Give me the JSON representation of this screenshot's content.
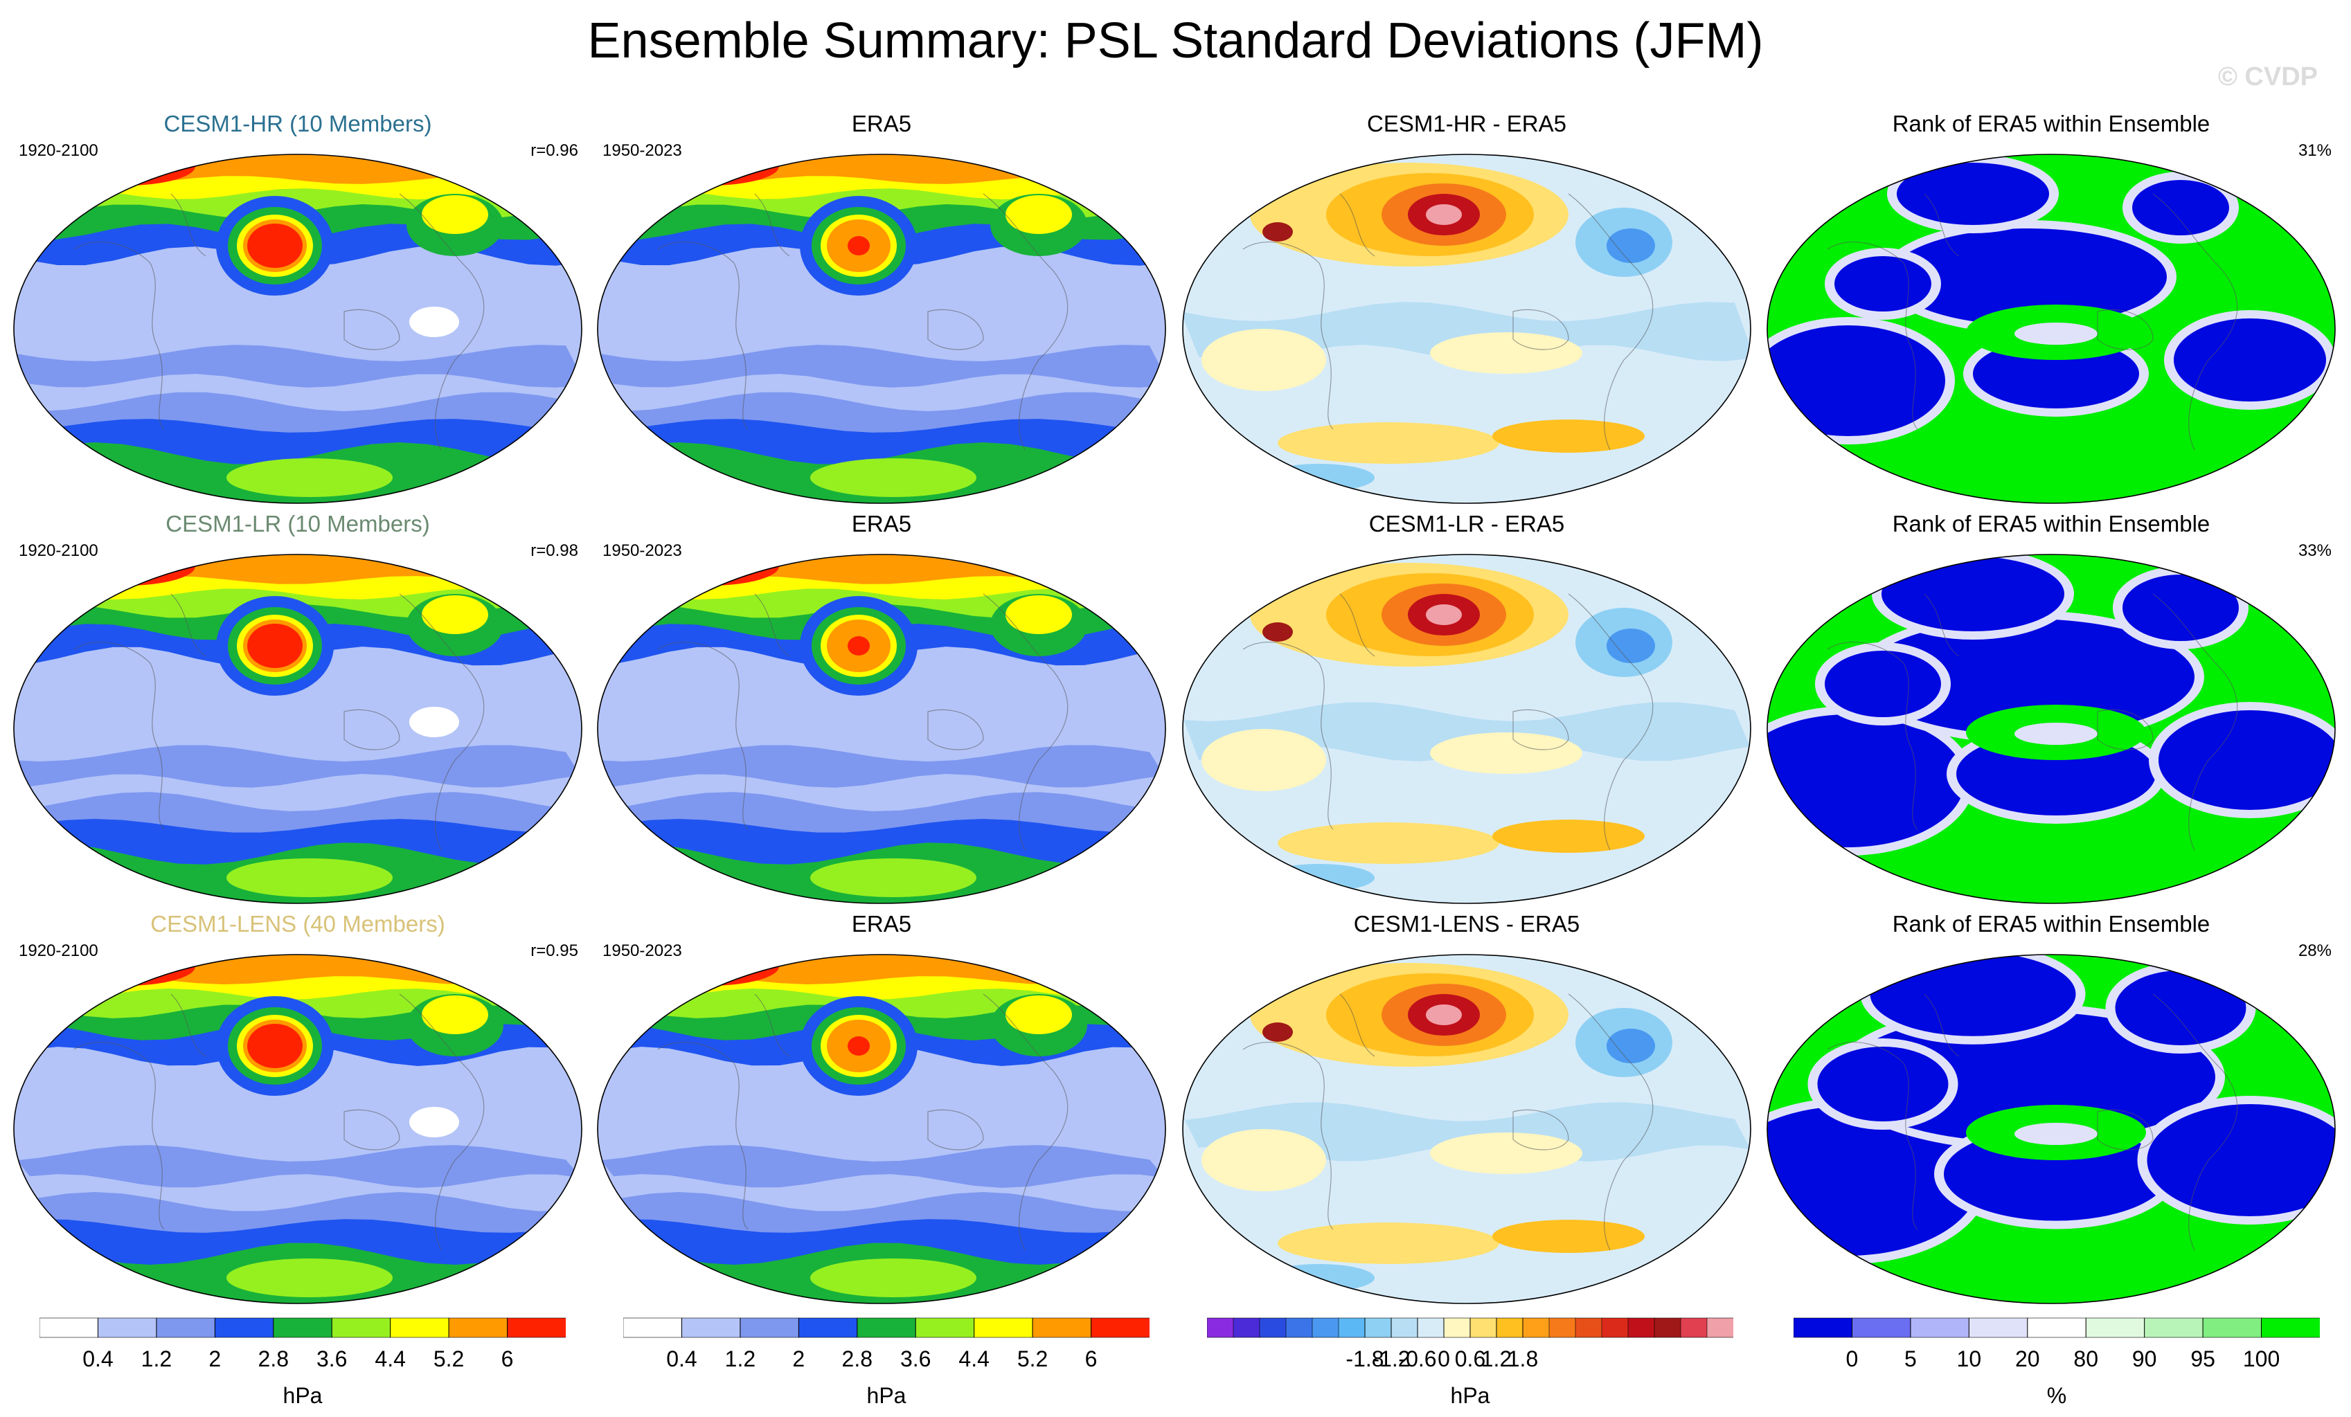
{
  "title": "Ensemble Summary: PSL Standard Deviations (JFM)",
  "copyright": "© CVDP",
  "rows": [
    {
      "model": {
        "title": "CESM1-HR (10 Members)",
        "title_color": "#2a7090",
        "years": "1920-2100",
        "r": "r=0.96"
      },
      "obs": {
        "title": "ERA5",
        "years": "1950-2023"
      },
      "diff": {
        "title": "CESM1-HR - ERA5"
      },
      "rank": {
        "title": "Rank of ERA5 within Ensemble",
        "percent": "31%"
      }
    },
    {
      "model": {
        "title": "CESM1-LR (10 Members)",
        "title_color": "#6a8a70",
        "years": "1920-2100",
        "r": "r=0.98"
      },
      "obs": {
        "title": "ERA5",
        "years": "1950-2023"
      },
      "diff": {
        "title": "CESM1-LR - ERA5"
      },
      "rank": {
        "title": "Rank of ERA5 within Ensemble",
        "percent": "33%"
      }
    },
    {
      "model": {
        "title": "CESM1-LENS (40 Members)",
        "title_color": "#d8c278",
        "years": "1920-2100",
        "r": "r=0.95"
      },
      "obs": {
        "title": "ERA5",
        "years": "1950-2023"
      },
      "diff": {
        "title": "CESM1-LENS - ERA5"
      },
      "rank": {
        "title": "Rank of ERA5 within Ensemble",
        "percent": "28%"
      }
    }
  ],
  "chart_data": {
    "type": "heatmap",
    "projection": "Robinson global maps, 3 rows x 4 columns",
    "variable": "PSL standard deviation",
    "season": "JFM",
    "colorbars": [
      {
        "name": "std",
        "unit": "hPa",
        "colors": [
          "#ffffff",
          "#b4c4f8",
          "#7e98f0",
          "#1f54f0",
          "#18b23a",
          "#96f020",
          "#ffff00",
          "#ff9a00",
          "#ff2200"
        ],
        "ticks": [
          "0.4",
          "1.2",
          "2",
          "2.8",
          "3.6",
          "4.4",
          "5.2",
          "6"
        ]
      },
      {
        "name": "std-obs",
        "unit": "hPa",
        "colors": [
          "#ffffff",
          "#b4c4f8",
          "#7e98f0",
          "#1f54f0",
          "#18b23a",
          "#96f020",
          "#ffff00",
          "#ff9a00",
          "#ff2200"
        ],
        "ticks": [
          "0.4",
          "1.2",
          "2",
          "2.8",
          "3.6",
          "4.4",
          "5.2",
          "6"
        ]
      },
      {
        "name": "difference",
        "unit": "hPa",
        "colors": [
          "#8a2be2",
          "#4b2bd8",
          "#2a4be0",
          "#3a74e8",
          "#4a98f0",
          "#5cb8f5",
          "#8ed0f4",
          "#b8def4",
          "#d8ecf8",
          "#fff6c0",
          "#ffe070",
          "#ffc020",
          "#ffa018",
          "#f67a1a",
          "#e8501a",
          "#dc2a1a",
          "#c0101a",
          "#a01818",
          "#e04050",
          "#f0a0a8"
        ],
        "ticks": [
          "-1.8",
          "-1.2",
          "-0.6",
          "0",
          "0.6",
          "1.2",
          "1.8"
        ]
      },
      {
        "name": "rank",
        "unit": "%",
        "colors": [
          "#0008e0",
          "#6a6ef0",
          "#b0b4f8",
          "#e0e2fa",
          "#ffffff",
          "#e0fae0",
          "#b8f4b8",
          "#80ee80",
          "#00ee00"
        ],
        "ticks": [
          "0",
          "5",
          "10",
          "20",
          "80",
          "90",
          "95",
          "100"
        ]
      }
    ]
  }
}
